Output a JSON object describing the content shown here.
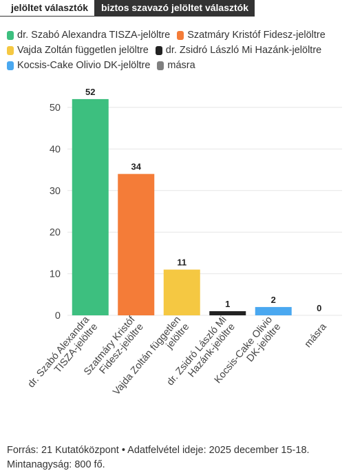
{
  "tabs": [
    {
      "label": "jelöltet választók"
    },
    {
      "label": "biztos szavazó jelöltet választók"
    }
  ],
  "colors": {
    "green": "#3dbf7f",
    "orange": "#f47c38",
    "yellow": "#f5c842",
    "black": "#222222",
    "blue": "#4aa8f0",
    "gray": "#808080"
  },
  "chart_data": {
    "type": "bar",
    "categories": [
      "dr. Szabó Alexandra TISZA-jelöltre",
      "Szatmáry Kristóf Fidesz-jelöltre",
      "Vajda Zoltán független jelöltre",
      "dr. Zsidró László Mi Hazánk-jelöltre",
      "Kocsis-Cake Olivio DK-jelöltre",
      "másra"
    ],
    "values": [
      52,
      34,
      11,
      1,
      2,
      0
    ],
    "colors": [
      "#3dbf7f",
      "#f47c38",
      "#f5c842",
      "#222222",
      "#4aa8f0",
      "#808080"
    ],
    "legend": [
      {
        "label": "dr. Szabó Alexandra TISZA-jelöltre",
        "color": "#3dbf7f"
      },
      {
        "label": "Szatmáry Kristóf Fidesz-jelöltre",
        "color": "#f47c38"
      },
      {
        "label": "Vajda Zoltán független jelöltre",
        "color": "#f5c842"
      },
      {
        "label": "dr. Zsidró László Mi Hazánk-jelöltre",
        "color": "#222222"
      },
      {
        "label": "Kocsis-Cake Olivio DK-jelöltre",
        "color": "#4aa8f0"
      },
      {
        "label": "másra",
        "color": "#808080"
      }
    ],
    "yticks": [
      0,
      10,
      20,
      30,
      40,
      50
    ],
    "ylim": [
      0,
      57
    ],
    "grid": true,
    "legend_position": "top"
  },
  "footer": {
    "line1": "Forrás: 21 Kutatóközpont • Adatfelvétel ideje: 2025 december 15-18.",
    "line2": "Mintanagyság: 800 fő."
  }
}
